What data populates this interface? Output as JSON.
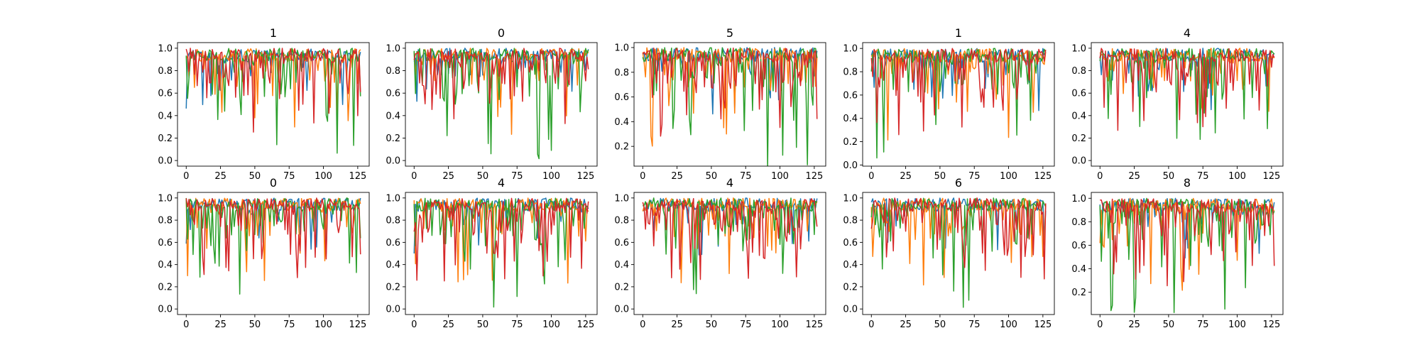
{
  "chart_data": [
    {
      "type": "line",
      "title": "1",
      "ylim": [
        -0.05,
        1.05
      ],
      "xlim": [
        -6.35,
        133.35
      ],
      "yticks": [
        0.0,
        0.2,
        0.4,
        0.6,
        0.8,
        1.0
      ],
      "xticks": [
        0,
        25,
        50,
        75,
        100,
        125
      ],
      "series": [
        {
          "color": "#1f77b4"
        },
        {
          "color": "#ff7f0e"
        },
        {
          "color": "#2ca02c"
        },
        {
          "color": "#d62728"
        }
      ]
    },
    {
      "type": "line",
      "title": "0",
      "ylim": [
        -0.05,
        1.05
      ],
      "xlim": [
        -6.35,
        133.35
      ],
      "yticks": [
        0.0,
        0.2,
        0.4,
        0.6,
        0.8,
        1.0
      ],
      "xticks": [
        0,
        25,
        50,
        75,
        100,
        125
      ],
      "series": [
        {
          "color": "#1f77b4"
        },
        {
          "color": "#ff7f0e"
        },
        {
          "color": "#2ca02c"
        },
        {
          "color": "#d62728"
        }
      ]
    },
    {
      "type": "line",
      "title": "5",
      "ylim": [
        0.04,
        1.04
      ],
      "xlim": [
        -6.35,
        133.35
      ],
      "yticks": [
        0.2,
        0.4,
        0.6,
        0.8,
        1.0
      ],
      "xticks": [
        0,
        25,
        50,
        75,
        100,
        125
      ],
      "series": [
        {
          "color": "#1f77b4"
        },
        {
          "color": "#ff7f0e"
        },
        {
          "color": "#2ca02c"
        },
        {
          "color": "#d62728"
        }
      ]
    },
    {
      "type": "line",
      "title": "1",
      "ylim": [
        -0.01,
        1.05
      ],
      "xlim": [
        -6.35,
        133.35
      ],
      "yticks": [
        0.0,
        0.2,
        0.4,
        0.6,
        0.8,
        1.0
      ],
      "xticks": [
        0,
        25,
        50,
        75,
        100,
        125
      ],
      "series": [
        {
          "color": "#1f77b4"
        },
        {
          "color": "#ff7f0e"
        },
        {
          "color": "#2ca02c"
        },
        {
          "color": "#d62728"
        }
      ]
    },
    {
      "type": "line",
      "title": "4",
      "ylim": [
        -0.05,
        1.05
      ],
      "xlim": [
        -6.35,
        133.35
      ],
      "yticks": [
        0.0,
        0.2,
        0.4,
        0.6,
        0.8,
        1.0
      ],
      "xticks": [
        0,
        25,
        50,
        75,
        100,
        125
      ],
      "series": [
        {
          "color": "#1f77b4"
        },
        {
          "color": "#ff7f0e"
        },
        {
          "color": "#2ca02c"
        },
        {
          "color": "#d62728"
        }
      ]
    },
    {
      "type": "line",
      "title": "0",
      "ylim": [
        -0.05,
        1.05
      ],
      "xlim": [
        -6.35,
        133.35
      ],
      "yticks": [
        0.0,
        0.2,
        0.4,
        0.6,
        0.8,
        1.0
      ],
      "xticks": [
        0,
        25,
        50,
        75,
        100,
        125
      ],
      "series": [
        {
          "color": "#1f77b4"
        },
        {
          "color": "#ff7f0e"
        },
        {
          "color": "#2ca02c"
        },
        {
          "color": "#d62728"
        }
      ]
    },
    {
      "type": "line",
      "title": "4",
      "ylim": [
        -0.05,
        1.05
      ],
      "xlim": [
        -6.35,
        133.35
      ],
      "yticks": [
        0.0,
        0.2,
        0.4,
        0.6,
        0.8,
        1.0
      ],
      "xticks": [
        0,
        25,
        50,
        75,
        100,
        125
      ],
      "series": [
        {
          "color": "#1f77b4"
        },
        {
          "color": "#ff7f0e"
        },
        {
          "color": "#2ca02c"
        },
        {
          "color": "#d62728"
        }
      ]
    },
    {
      "type": "line",
      "title": "4",
      "ylim": [
        -0.05,
        1.05
      ],
      "xlim": [
        -6.35,
        133.35
      ],
      "yticks": [
        0.0,
        0.2,
        0.4,
        0.6,
        0.8,
        1.0
      ],
      "xticks": [
        0,
        25,
        50,
        75,
        100,
        125
      ],
      "series": [
        {
          "color": "#1f77b4"
        },
        {
          "color": "#ff7f0e"
        },
        {
          "color": "#2ca02c"
        },
        {
          "color": "#d62728"
        }
      ]
    },
    {
      "type": "line",
      "title": "6",
      "ylim": [
        -0.05,
        1.05
      ],
      "xlim": [
        -6.35,
        133.35
      ],
      "yticks": [
        0.0,
        0.2,
        0.4,
        0.6,
        0.8,
        1.0
      ],
      "xticks": [
        0,
        25,
        50,
        75,
        100,
        125
      ],
      "series": [
        {
          "color": "#1f77b4"
        },
        {
          "color": "#ff7f0e"
        },
        {
          "color": "#2ca02c"
        },
        {
          "color": "#d62728"
        }
      ]
    },
    {
      "type": "line",
      "title": "8",
      "ylim": [
        0.01,
        1.05
      ],
      "xlim": [
        -6.35,
        133.35
      ],
      "yticks": [
        0.2,
        0.4,
        0.6,
        0.8,
        1.0
      ],
      "xticks": [
        0,
        25,
        50,
        75,
        100,
        125
      ],
      "series": [
        {
          "color": "#1f77b4"
        },
        {
          "color": "#ff7f0e"
        },
        {
          "color": "#2ca02c"
        },
        {
          "color": "#d62728"
        }
      ]
    }
  ]
}
